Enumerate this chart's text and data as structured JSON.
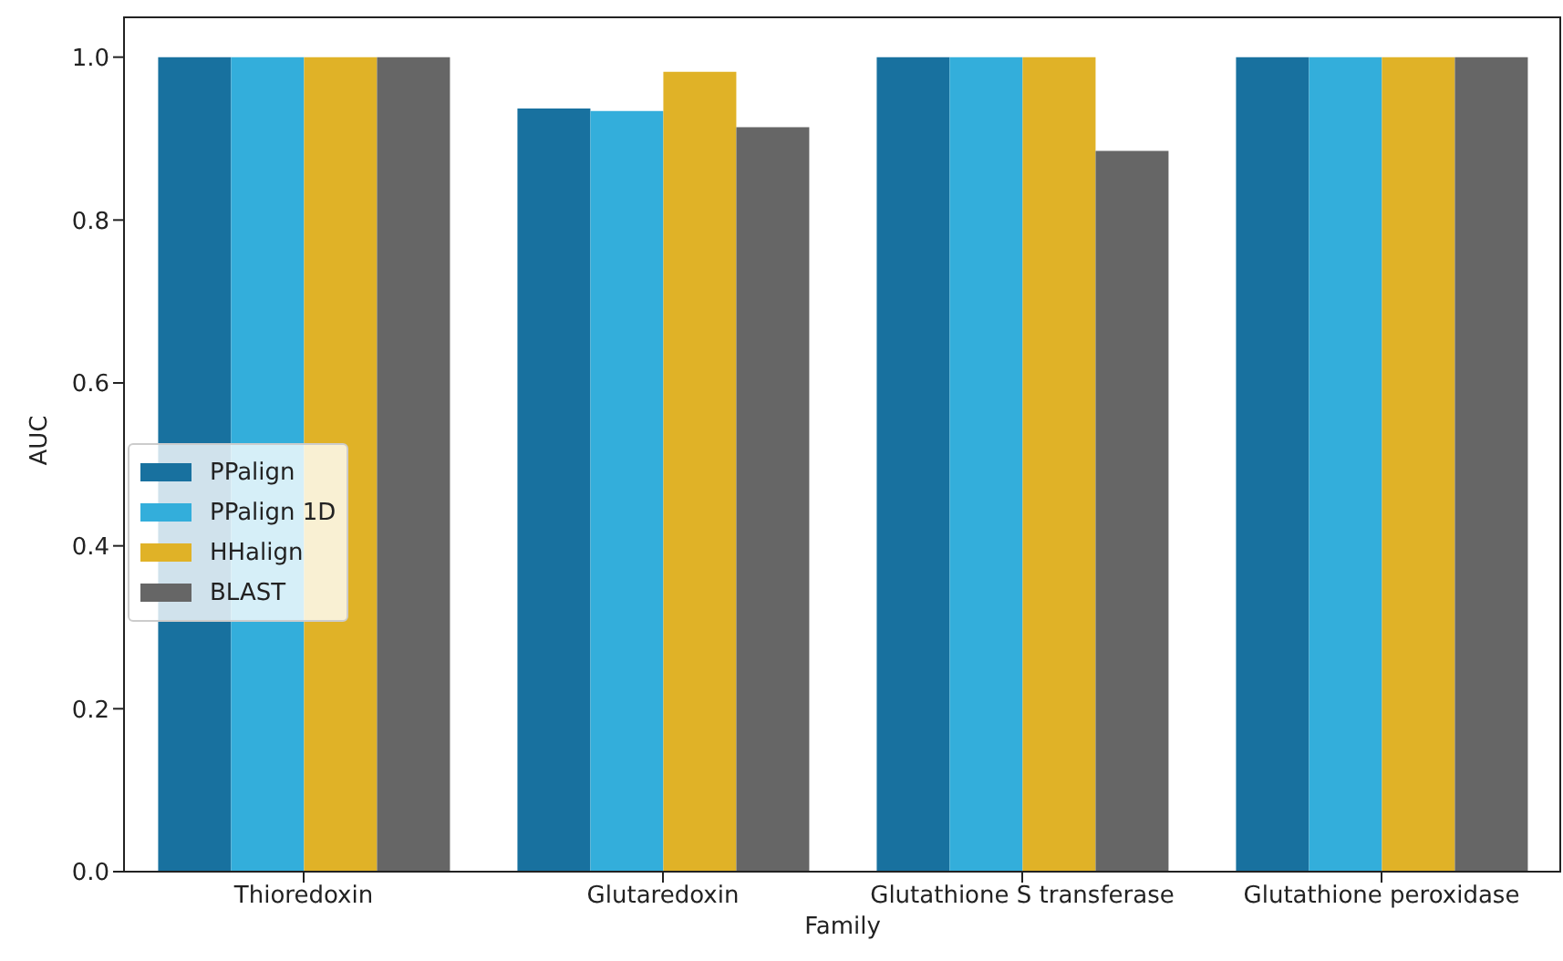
{
  "chart_data": {
    "type": "bar",
    "xlabel": "Family",
    "ylabel": "AUC",
    "categories": [
      "Thioredoxin",
      "Glutaredoxin",
      "Glutathione S transferase",
      "Glutathione peroxidase"
    ],
    "series": [
      {
        "name": "PPalign",
        "color": "#18719f",
        "values": [
          1.0,
          0.937,
          1.0,
          1.0
        ]
      },
      {
        "name": "PPalign 1D",
        "color": "#33aedb",
        "values": [
          1.0,
          0.934,
          1.0,
          1.0
        ]
      },
      {
        "name": "HHalign",
        "color": "#e0b227",
        "values": [
          1.0,
          0.982,
          1.0,
          1.0
        ]
      },
      {
        "name": "BLAST",
        "color": "#666666",
        "values": [
          1.0,
          0.914,
          0.885,
          1.0
        ]
      }
    ],
    "ylim": [
      0,
      1.05
    ],
    "yticks": [
      {
        "value": 0,
        "label": "0.0"
      },
      0.2,
      0.4,
      0.6,
      0.8,
      {
        "value": 1,
        "label": "1.0"
      }
    ],
    "legend": "left",
    "grid": false
  }
}
